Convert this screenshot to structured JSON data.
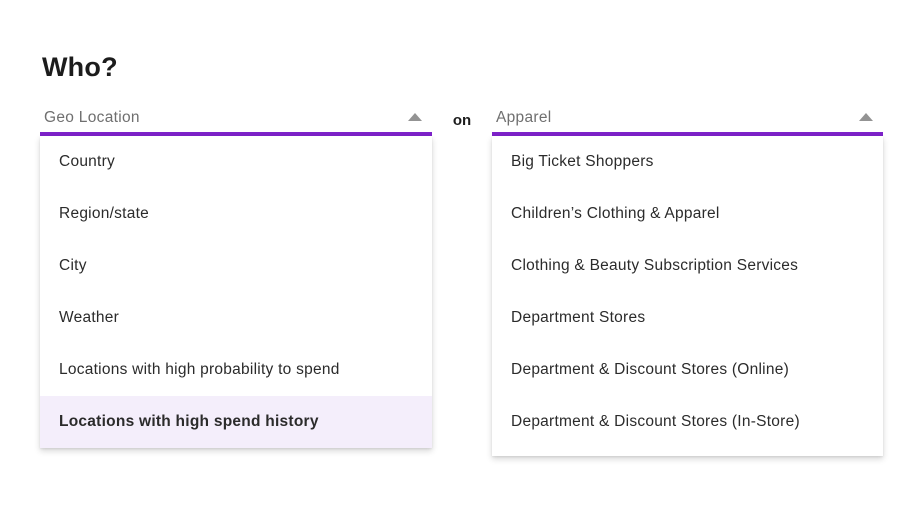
{
  "page": {
    "heading": "Who?",
    "connector": "on"
  },
  "selects": {
    "left": {
      "value": "Geo Location",
      "state": "open"
    },
    "right": {
      "value": "Apparel",
      "state": "open"
    }
  },
  "dropdowns": {
    "left": {
      "items": [
        "Country",
        "Region/state",
        "City",
        "Weather",
        "Locations with high probability to spend",
        "Locations with high spend history"
      ],
      "highlighted_index": 5
    },
    "right": {
      "items": [
        "Big Ticket Shoppers",
        "Children’s Clothing & Apparel",
        "Clothing & Beauty Subscription Services",
        "Department Stores",
        "Department & Discount Stores (Online)",
        "Department & Discount Stores (In-Store)"
      ],
      "highlighted_index": -1
    }
  },
  "icons": {
    "dropdown_arrow": "triangle-up-icon"
  },
  "colors": {
    "accent_purple": "#7d22c9",
    "highlight_background": "#f4eefb",
    "label_gray": "#6f6f6f",
    "item_text": "#2b2b2b",
    "arrow_gray": "#939393"
  }
}
